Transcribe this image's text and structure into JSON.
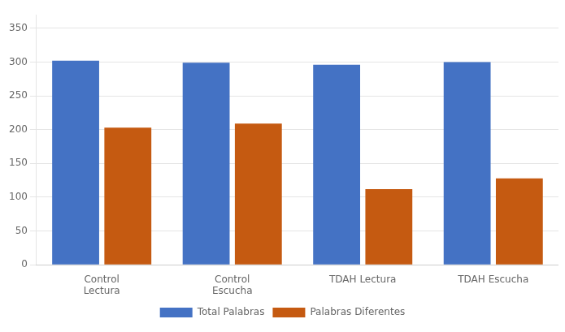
{
  "chart_data": {
    "type": "bar",
    "categories": [
      "Control\nLectura",
      "Control\nEscucha",
      "TDAH Lectura",
      "TDAH Escucha"
    ],
    "series": [
      {
        "name": "Total Palabras",
        "color": "#4472C4",
        "values": [
          302,
          299,
          296,
          300
        ]
      },
      {
        "name": "Palabras Diferentes",
        "color": "#C55A11",
        "values": [
          203,
          209,
          112,
          128
        ]
      }
    ],
    "ylim": [
      0,
      370
    ],
    "yticks": [
      0,
      50,
      100,
      150,
      200,
      250,
      300,
      350
    ],
    "grid": true,
    "legend": "bottom"
  }
}
